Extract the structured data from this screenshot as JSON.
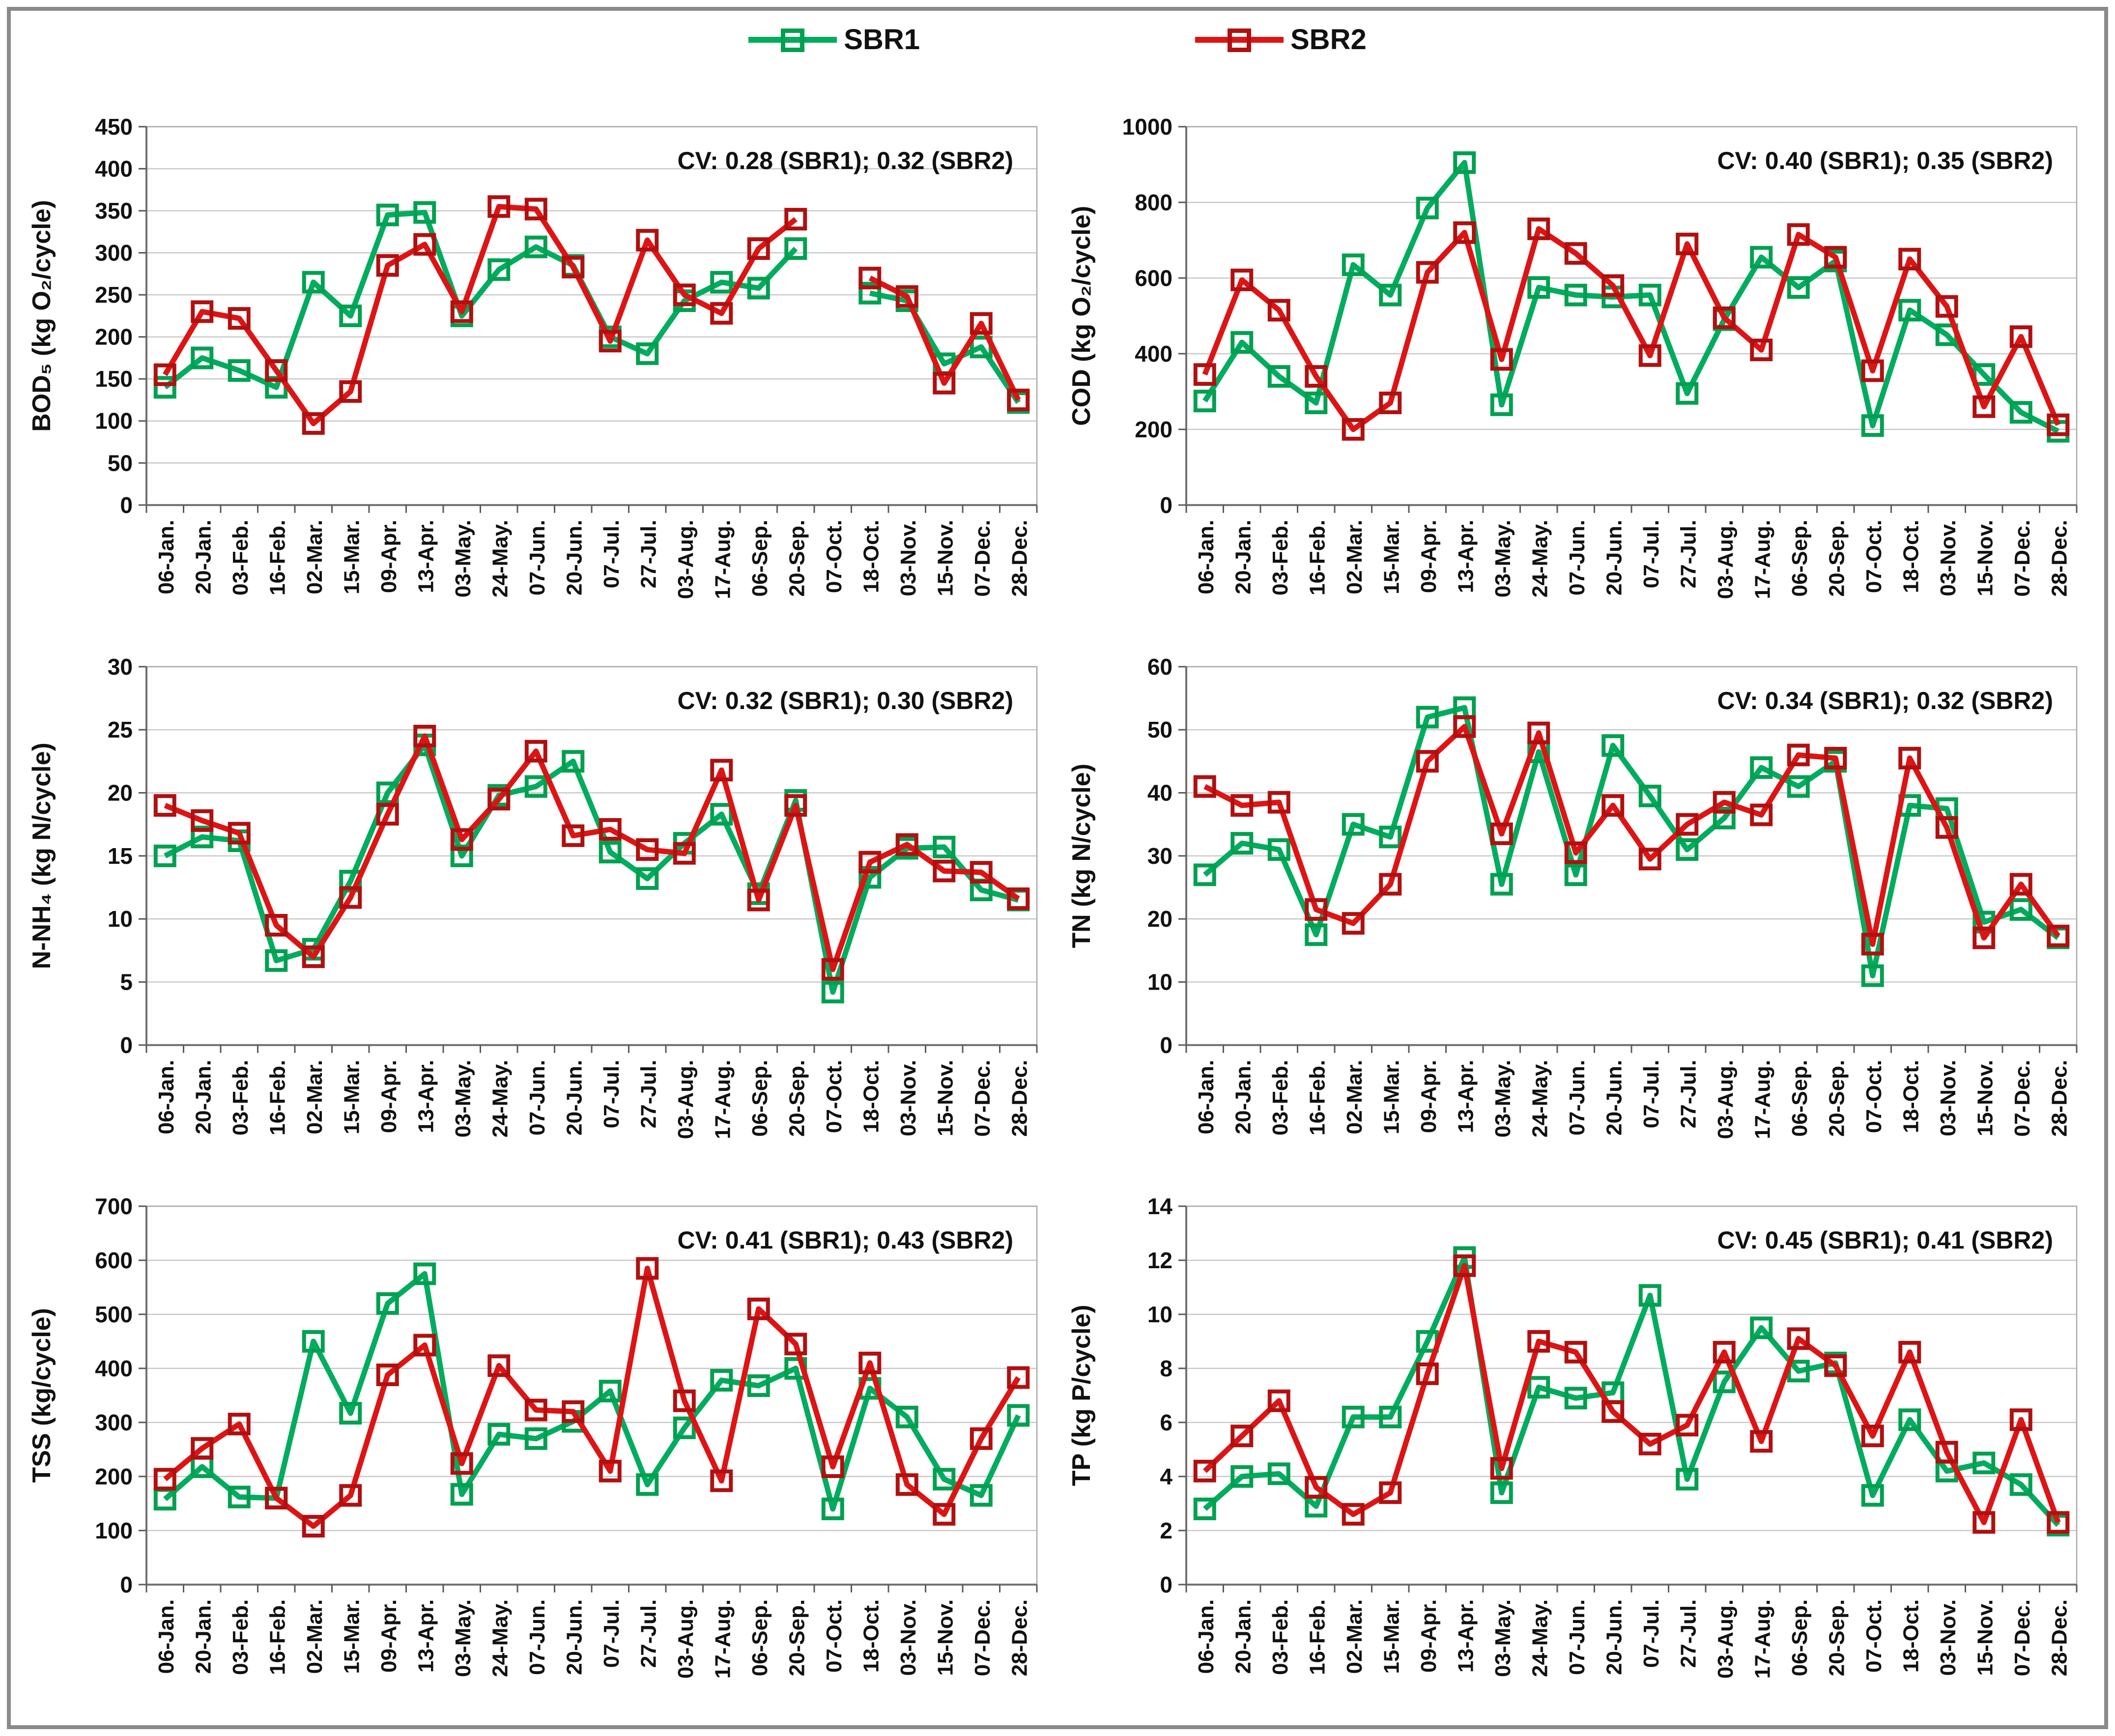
{
  "legend": {
    "items": [
      {
        "label": "SBR1"
      },
      {
        "label": "SBR2"
      }
    ]
  },
  "colors": {
    "sbr1_line": "#00AC5E",
    "sbr1_marker": "#00A050",
    "sbr2_line": "#DE1414",
    "sbr2_marker": "#B01010",
    "gridline": "#C9C9C9",
    "plot_border": "#A9A9A9",
    "axis": "#707070",
    "tick": "#595959",
    "text": "#111111",
    "frame": "#8A8A8A"
  },
  "layout": {
    "panels_grid": "2x3",
    "legend_position": "top-center",
    "gridlines": "horizontal",
    "x_labels_rotated_deg": 90
  },
  "x_categories": [
    "06-Jan.",
    "20-Jan.",
    "03-Feb.",
    "16-Feb.",
    "02-Mar.",
    "15-Mar.",
    "09-Apr.",
    "13-Apr.",
    "03-May.",
    "24-May.",
    "07-Jun.",
    "20-Jun.",
    "07-Jul.",
    "27-Jul.",
    "03-Aug.",
    "17-Aug.",
    "06-Sep.",
    "20-Sep.",
    "07-Oct.",
    "18-Oct.",
    "03-Nov.",
    "15-Nov.",
    "07-Dec.",
    "28-Dec."
  ],
  "chart_data": [
    {
      "id": "bod5",
      "type": "line",
      "ylabel": "BOD₅ (kg O₂/cycle)",
      "cv_label": "CV: 0.28 (SBR1); 0.32 (SBR2)",
      "ylim": [
        0,
        450
      ],
      "ytick_step": 50,
      "series": [
        {
          "name": "SBR1",
          "values": [
            140,
            175,
            160,
            140,
            265,
            225,
            345,
            348,
            225,
            280,
            307,
            285,
            200,
            180,
            243,
            265,
            258,
            305,
            null,
            252,
            243,
            168,
            188,
            122
          ]
        },
        {
          "name": "SBR2",
          "values": [
            155,
            230,
            222,
            160,
            97,
            135,
            285,
            310,
            230,
            355,
            352,
            283,
            195,
            315,
            250,
            228,
            305,
            340,
            null,
            270,
            248,
            145,
            216,
            125
          ]
        }
      ]
    },
    {
      "id": "cod",
      "type": "line",
      "ylabel": "COD (kg O₂/cycle)",
      "cv_label": "CV: 0.40 (SBR1); 0.35 (SBR2)",
      "ylim": [
        0,
        1000
      ],
      "ytick_step": 200,
      "series": [
        {
          "name": "SBR1",
          "values": [
            275,
            430,
            340,
            270,
            635,
            555,
            785,
            905,
            265,
            575,
            555,
            550,
            555,
            295,
            490,
            655,
            575,
            645,
            210,
            515,
            450,
            345,
            245,
            195
          ]
        },
        {
          "name": "SBR2",
          "values": [
            345,
            595,
            515,
            340,
            200,
            270,
            615,
            720,
            385,
            730,
            665,
            580,
            395,
            690,
            495,
            410,
            715,
            655,
            355,
            650,
            525,
            260,
            445,
            212
          ]
        }
      ]
    },
    {
      "id": "n-nh4",
      "type": "line",
      "ylabel": "N-NH₄ (kg N/cycle)",
      "cv_label": "CV: 0.32 (SBR1); 0.30 (SBR2)",
      "ylim": [
        0,
        30
      ],
      "ytick_step": 5,
      "series": [
        {
          "name": "SBR1",
          "values": [
            15.0,
            16.5,
            16.2,
            6.7,
            7.6,
            13.0,
            20.0,
            23.8,
            15.0,
            19.8,
            20.5,
            22.5,
            15.3,
            13.2,
            16.0,
            18.3,
            12.0,
            19.4,
            4.2,
            13.3,
            15.6,
            15.7,
            12.3,
            11.5
          ]
        },
        {
          "name": "SBR2",
          "values": [
            19.0,
            17.8,
            16.8,
            9.5,
            7.0,
            11.7,
            18.3,
            24.5,
            16.3,
            19.5,
            23.3,
            16.6,
            17.1,
            15.5,
            15.2,
            21.8,
            11.5,
            19.0,
            6.0,
            14.5,
            15.9,
            13.8,
            13.7,
            11.6
          ]
        }
      ]
    },
    {
      "id": "tn",
      "type": "line",
      "ylabel": "TN (kg N/cycle)",
      "cv_label": "CV: 0.34 (SBR1); 0.32 (SBR2)",
      "ylim": [
        0,
        60
      ],
      "ytick_step": 10,
      "series": [
        {
          "name": "SBR1",
          "values": [
            27,
            32,
            31,
            17.5,
            35,
            33,
            52,
            53.5,
            25.5,
            46.5,
            27,
            47.5,
            39.5,
            31,
            36,
            44,
            41,
            45,
            11,
            38,
            37.5,
            19.5,
            21.5,
            17
          ]
        },
        {
          "name": "SBR2",
          "values": [
            41,
            38,
            38.5,
            21.5,
            19.3,
            25.5,
            45,
            50.5,
            33.5,
            49.5,
            30.5,
            38,
            29.5,
            35,
            38.5,
            36.5,
            46,
            45.5,
            16,
            45.5,
            34.5,
            17,
            25.5,
            17.3
          ]
        }
      ]
    },
    {
      "id": "tss",
      "type": "line",
      "ylabel": "TSS (kg/cycle)",
      "cv_label": "CV: 0.41 (SBR1); 0.43 (SBR2)",
      "ylim": [
        0,
        700
      ],
      "ytick_step": 100,
      "series": [
        {
          "name": "SBR1",
          "values": [
            158,
            218,
            162,
            160,
            450,
            317,
            520,
            575,
            167,
            278,
            270,
            302,
            358,
            185,
            290,
            378,
            368,
            400,
            140,
            363,
            310,
            195,
            165,
            313
          ]
        },
        {
          "name": "SBR2",
          "values": [
            195,
            252,
            297,
            160,
            108,
            165,
            388,
            443,
            224,
            405,
            323,
            320,
            210,
            585,
            340,
            192,
            510,
            445,
            218,
            410,
            185,
            130,
            270,
            383
          ]
        }
      ]
    },
    {
      "id": "tp",
      "type": "line",
      "ylabel": "TP (kg P/cycle)",
      "cv_label": "CV: 0.45 (SBR1); 0.41 (SBR2)",
      "ylim": [
        0,
        14
      ],
      "ytick_step": 2,
      "series": [
        {
          "name": "SBR1",
          "values": [
            2.8,
            4.0,
            4.1,
            2.9,
            6.2,
            6.2,
            9.0,
            12.1,
            3.4,
            7.3,
            6.9,
            7.1,
            10.7,
            3.9,
            7.5,
            9.5,
            7.9,
            8.2,
            3.3,
            6.1,
            4.2,
            4.5,
            3.7,
            2.2
          ]
        },
        {
          "name": "SBR2",
          "values": [
            4.2,
            5.5,
            6.8,
            3.6,
            2.6,
            3.4,
            7.8,
            11.8,
            4.3,
            9.0,
            8.6,
            6.4,
            5.2,
            5.9,
            8.6,
            5.3,
            9.1,
            8.1,
            5.5,
            8.6,
            4.9,
            2.3,
            6.1,
            2.3
          ]
        }
      ]
    }
  ]
}
